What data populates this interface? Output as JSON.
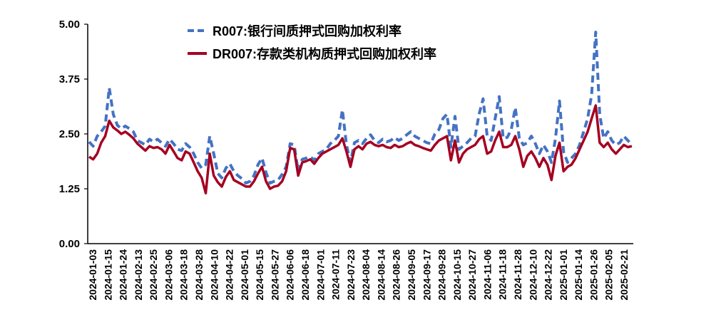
{
  "chart_data": {
    "type": "line",
    "title": "",
    "xlabel": "",
    "ylabel": "",
    "ylim": [
      0,
      5
    ],
    "yticks": [
      "0.00",
      "1.25",
      "2.50",
      "3.75",
      "5.00"
    ],
    "xticks": [
      "2024-01-03",
      "2024-01-15",
      "2024-01-24",
      "2024-02-13",
      "2024-02-25",
      "2024-03-06",
      "2024-03-18",
      "2024-03-28",
      "2024-04-10",
      "2024-04-22",
      "2024-05-01",
      "2024-05-15",
      "2024-05-27",
      "2024-06-06",
      "2024-06-18",
      "2024-07-01",
      "2024-07-11",
      "2024-07-23",
      "2024-08-04",
      "2024-08-14",
      "2024-08-26",
      "2024-09-05",
      "2024-09-17",
      "2024-09-28",
      "2024-10-15",
      "2024-10-27",
      "2024-11-06",
      "2024-11-18",
      "2024-11-28",
      "2024-12-10",
      "2024-12-22",
      "2025-01-01",
      "2025-01-14",
      "2025-01-26",
      "2025-02-05",
      "2025-02-21"
    ],
    "legend_position": "top-center",
    "series": [
      {
        "name": "R007:银行间质押式回购加权利率",
        "color": "#4472C4",
        "style": "dashed",
        "values": [
          2.32,
          2.22,
          2.45,
          2.55,
          2.68,
          3.55,
          2.95,
          2.7,
          2.62,
          2.68,
          2.62,
          2.55,
          2.35,
          2.3,
          2.25,
          2.38,
          2.32,
          2.38,
          2.3,
          2.22,
          2.38,
          2.28,
          2.15,
          2.12,
          2.28,
          2.2,
          2.05,
          1.85,
          1.72,
          1.8,
          2.45,
          2.05,
          1.6,
          1.5,
          1.72,
          1.82,
          1.65,
          1.55,
          1.48,
          1.38,
          1.42,
          1.55,
          1.8,
          1.95,
          1.62,
          1.38,
          1.42,
          1.45,
          1.58,
          1.75,
          2.28,
          2.25,
          1.65,
          1.92,
          1.95,
          1.98,
          1.9,
          2.05,
          2.1,
          2.15,
          2.28,
          2.35,
          2.45,
          3.05,
          2.25,
          1.85,
          2.3,
          2.35,
          2.28,
          2.4,
          2.48,
          2.35,
          2.3,
          2.38,
          2.32,
          2.35,
          2.42,
          2.35,
          2.4,
          2.48,
          2.55,
          2.45,
          2.4,
          2.35,
          2.3,
          2.28,
          2.5,
          2.6,
          2.85,
          2.95,
          2.2,
          2.9,
          2.15,
          2.22,
          2.3,
          2.4,
          2.45,
          2.95,
          3.3,
          2.45,
          2.35,
          2.85,
          3.35,
          2.4,
          2.42,
          2.6,
          3.1,
          2.4,
          2.25,
          2.3,
          2.45,
          2.28,
          2.05,
          2.25,
          2.1,
          1.85,
          2.4,
          3.25,
          2.1,
          1.85,
          1.95,
          2.05,
          2.25,
          2.55,
          2.85,
          3.4,
          4.82,
          2.95,
          2.4,
          2.55,
          2.35,
          2.25,
          2.3,
          2.45,
          2.35,
          2.25
        ]
      },
      {
        "name": "DR007:存款类机构质押式回购加权利率",
        "color": "#A50021",
        "style": "solid",
        "values": [
          1.98,
          1.92,
          2.05,
          2.3,
          2.45,
          2.8,
          2.65,
          2.58,
          2.5,
          2.55,
          2.48,
          2.4,
          2.28,
          2.2,
          2.12,
          2.22,
          2.18,
          2.2,
          2.15,
          2.05,
          2.25,
          2.1,
          1.95,
          1.9,
          2.1,
          2.05,
          1.85,
          1.65,
          1.5,
          1.15,
          2.05,
          1.55,
          1.4,
          1.3,
          1.52,
          1.65,
          1.45,
          1.4,
          1.35,
          1.3,
          1.3,
          1.42,
          1.6,
          1.75,
          1.42,
          1.25,
          1.3,
          1.32,
          1.42,
          1.65,
          2.18,
          2.15,
          1.55,
          1.85,
          1.88,
          1.92,
          1.82,
          1.95,
          2.05,
          2.1,
          2.15,
          2.2,
          2.25,
          2.4,
          2.1,
          1.75,
          2.15,
          2.22,
          2.15,
          2.28,
          2.32,
          2.25,
          2.22,
          2.25,
          2.2,
          2.18,
          2.25,
          2.2,
          2.22,
          2.28,
          2.32,
          2.25,
          2.22,
          2.18,
          2.15,
          2.12,
          2.25,
          2.35,
          2.4,
          2.45,
          1.9,
          2.35,
          1.85,
          2.05,
          2.15,
          2.2,
          2.25,
          2.38,
          2.45,
          2.05,
          2.1,
          2.35,
          2.55,
          2.2,
          2.2,
          2.25,
          2.45,
          2.15,
          1.75,
          2.0,
          2.1,
          1.95,
          1.75,
          1.95,
          1.8,
          1.45,
          2.0,
          2.3,
          1.65,
          1.75,
          1.8,
          1.95,
          2.15,
          2.35,
          2.55,
          2.85,
          3.15,
          2.3,
          2.2,
          2.3,
          2.15,
          2.05,
          2.15,
          2.25,
          2.2,
          2.22
        ]
      }
    ]
  }
}
